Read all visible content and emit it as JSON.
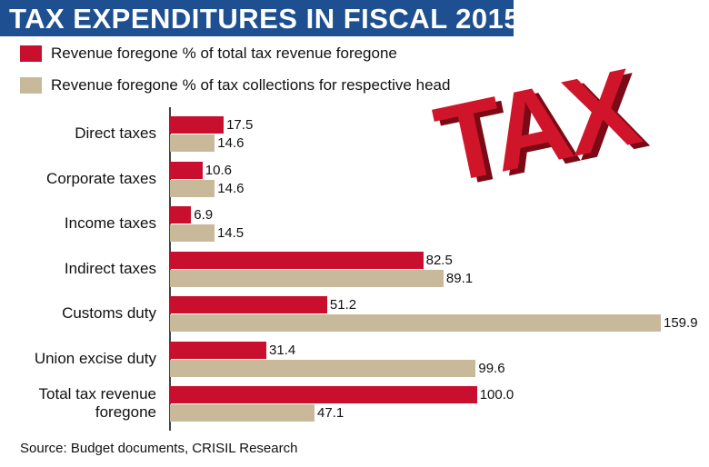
{
  "chart_data": {
    "type": "bar",
    "orientation": "horizontal",
    "title": "TAX EXPENDITURES IN FISCAL 2015",
    "illustration_text": "TAX",
    "categories": [
      "Direct taxes",
      "Corporate taxes",
      "Income taxes",
      "Indirect taxes",
      "Customs duty",
      "Union excise duty",
      "Total tax revenue foregone"
    ],
    "series": [
      {
        "name": "Revenue foregone % of total tax revenue foregone",
        "color": "#c8102e",
        "values": [
          17.5,
          10.6,
          6.9,
          82.5,
          51.2,
          31.4,
          100
        ],
        "value_labels": [
          "17.5",
          "10.6",
          "6.9",
          "82.5",
          "51.2",
          "31.4",
          "100.0"
        ]
      },
      {
        "name": "Revenue foregone % of tax collections for respective head",
        "color": "#c9b99b",
        "values": [
          14.6,
          14.6,
          14.5,
          89.1,
          159.9,
          99.6,
          47.1
        ]
      }
    ],
    "source": "Source: Budget documents, CRISIL Research"
  }
}
